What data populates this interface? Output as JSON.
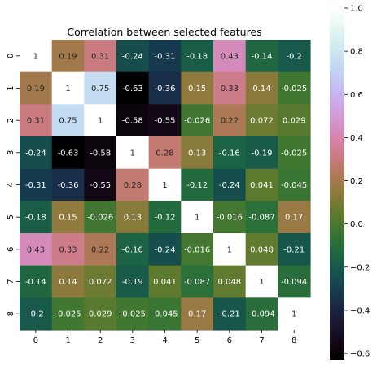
{
  "chart_data": {
    "type": "heatmap",
    "title": "Correlation between selected features",
    "xlabel": "",
    "ylabel": "",
    "x_categories": [
      "0",
      "1",
      "2",
      "3",
      "4",
      "5",
      "6",
      "7",
      "8"
    ],
    "y_categories": [
      "0",
      "1",
      "2",
      "3",
      "4",
      "5",
      "6",
      "7",
      "8"
    ],
    "values": [
      [
        1,
        0.19,
        0.31,
        -0.24,
        -0.31,
        -0.18,
        0.43,
        -0.14,
        -0.2
      ],
      [
        0.19,
        1,
        0.75,
        -0.63,
        -0.36,
        0.15,
        0.33,
        0.14,
        -0.025
      ],
      [
        0.31,
        0.75,
        1,
        -0.58,
        -0.55,
        -0.026,
        0.22,
        0.072,
        0.029
      ],
      [
        -0.24,
        -0.63,
        -0.58,
        1,
        0.28,
        0.13,
        -0.16,
        -0.19,
        -0.025
      ],
      [
        -0.31,
        -0.36,
        -0.55,
        0.28,
        1,
        -0.12,
        -0.24,
        0.041,
        -0.045
      ],
      [
        -0.18,
        0.15,
        -0.026,
        0.13,
        -0.12,
        1,
        -0.016,
        -0.087,
        0.17
      ],
      [
        0.43,
        0.33,
        0.22,
        -0.16,
        -0.24,
        -0.016,
        1,
        0.048,
        -0.21
      ],
      [
        -0.14,
        0.14,
        0.072,
        -0.19,
        0.041,
        -0.087,
        0.048,
        1,
        -0.094
      ],
      [
        -0.2,
        -0.025,
        0.029,
        -0.025,
        -0.045,
        0.17,
        -0.21,
        -0.094,
        1
      ]
    ],
    "annotations": [
      [
        "1",
        "0.19",
        "0.31",
        "-0.24",
        "-0.31",
        "-0.18",
        "0.43",
        "-0.14",
        "-0.2"
      ],
      [
        "0.19",
        "1",
        "0.75",
        "-0.63",
        "-0.36",
        "0.15",
        "0.33",
        "0.14",
        "-0.025"
      ],
      [
        "0.31",
        "0.75",
        "1",
        "-0.58",
        "-0.55",
        "-0.026",
        "0.22",
        "0.072",
        "0.029"
      ],
      [
        "-0.24",
        "-0.63",
        "-0.58",
        "1",
        "0.28",
        "0.13",
        "-0.16",
        "-0.19",
        "-0.025"
      ],
      [
        "-0.31",
        "-0.36",
        "-0.55",
        "0.28",
        "1",
        "-0.12",
        "-0.24",
        "0.041",
        "-0.045"
      ],
      [
        "-0.18",
        "0.15",
        "-0.026",
        "0.13",
        "-0.12",
        "1",
        "-0.016",
        "-0.087",
        "0.17"
      ],
      [
        "0.43",
        "0.33",
        "0.22",
        "-0.16",
        "-0.24",
        "-0.016",
        "1",
        "0.048",
        "-0.21"
      ],
      [
        "-0.14",
        "0.14",
        "0.072",
        "-0.19",
        "0.041",
        "-0.087",
        "0.048",
        "1",
        "-0.094"
      ],
      [
        "-0.2",
        "-0.025",
        "0.029",
        "-0.025",
        "-0.045",
        "0.17",
        "-0.21",
        "-0.094",
        "1"
      ]
    ],
    "colormap": "cubehelix",
    "colorbar": {
      "vmin": -0.63,
      "vmax": 1.0,
      "ticks": [
        1.0,
        0.8,
        0.6,
        0.4,
        0.2,
        0.0,
        -0.2,
        -0.4,
        -0.6
      ],
      "tick_labels": [
        "1.0",
        "0.8",
        "0.6",
        "0.4",
        "0.2",
        "0.0",
        "−0.2",
        "−0.4",
        "−0.6"
      ]
    },
    "grid": false,
    "legend": "colorbar-right"
  }
}
